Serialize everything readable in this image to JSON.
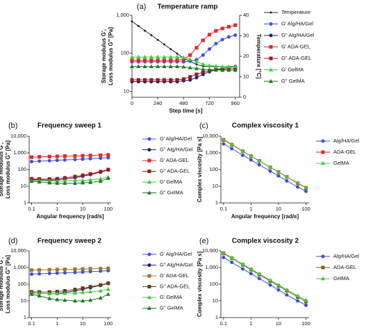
{
  "chart_data": [
    {
      "type": "line",
      "panel_label": "(a)",
      "title": "Temperature ramp",
      "xlabel": "Step time [s]",
      "ylabel": [
        "Storage modulus G',",
        "Loss modulus G'' [Pa]"
      ],
      "y2label": "Temperature [°C]",
      "ylog": true,
      "xlog": false,
      "xlim": [
        0,
        1000
      ],
      "xticks": [
        0,
        240,
        480,
        720,
        960
      ],
      "ylim": [
        7,
        1000
      ],
      "yticks": [
        10,
        100,
        {
          "value": 1000,
          "label": "1,000"
        }
      ],
      "y2lim": [
        0,
        40
      ],
      "y2ticks": [
        0,
        10,
        20,
        30,
        40
      ],
      "x": [
        0,
        60,
        120,
        180,
        240,
        300,
        360,
        420,
        480,
        540,
        600,
        660,
        720,
        780,
        840,
        900,
        960
      ],
      "series": [
        {
          "name": "Temperature",
          "color": "#222222",
          "marker": "dot",
          "axis": "y2",
          "values": [
            37,
            34.8,
            32.5,
            30.3,
            28,
            25.8,
            23.5,
            21.3,
            19,
            17.5,
            16,
            15.2,
            15,
            15,
            15,
            15,
            15
          ]
        },
        {
          "name": "G' Alg/HA/Gel",
          "color": "#3b4fd8",
          "marker": "circle",
          "values": [
            60,
            60,
            60,
            60,
            60,
            60,
            60,
            60,
            60,
            62,
            68,
            90,
            130,
            180,
            230,
            270,
            300
          ]
        },
        {
          "name": "G'' Alg/HA/Gel",
          "color": "#1c1c7a",
          "marker": "circle",
          "values": [
            18,
            18,
            18,
            18,
            18,
            18,
            18,
            18,
            19,
            20,
            23,
            28,
            33,
            37,
            40,
            43,
            45
          ]
        },
        {
          "name": "G' ADA-GEL",
          "color": "#e8262a",
          "marker": "square",
          "values": [
            65,
            65,
            65,
            65,
            65,
            65,
            65,
            65,
            70,
            90,
            140,
            220,
            310,
            390,
            450,
            500,
            550
          ]
        },
        {
          "name": "G'' ADA-GEL",
          "color": "#a01818",
          "marker": "square",
          "values": [
            20,
            20,
            20,
            20,
            20,
            20,
            20,
            20,
            21,
            24,
            28,
            32,
            35,
            37,
            38,
            39,
            40
          ]
        },
        {
          "name": "G' GelMA",
          "color": "#3ccf3c",
          "marker": "triangle",
          "values": [
            80,
            80,
            80,
            80,
            80,
            80,
            80,
            80,
            78,
            70,
            60,
            52,
            48,
            46,
            45,
            45,
            45
          ]
        },
        {
          "name": "G'' GelMA",
          "color": "#1e7a1e",
          "marker": "triangle",
          "values": [
            45,
            45,
            45,
            45,
            45,
            45,
            45,
            45,
            44,
            42,
            40,
            38,
            37,
            37,
            36,
            36,
            36
          ]
        }
      ]
    },
    {
      "type": "line",
      "panel_label": "(b)",
      "title": "Frequency sweep 1",
      "xlabel": "Angular frequency [rad/s]",
      "ylabel": [
        "Storage modulus G',",
        "Loss modulus G'' [Pa]"
      ],
      "ylog": true,
      "xlog": true,
      "xlim": [
        0.08,
        130
      ],
      "xticks": [
        0.1,
        1,
        10,
        100
      ],
      "ylim": [
        1,
        10000
      ],
      "yticks": [
        1,
        10,
        100,
        {
          "value": 1000,
          "label": "1,000"
        },
        {
          "value": 10000,
          "label": "10,000"
        }
      ],
      "x": [
        0.1,
        0.2,
        0.5,
        1,
        2,
        5,
        10,
        20,
        50,
        100
      ],
      "series": [
        {
          "name": "G' Alg/HA/Gel",
          "color": "#3b4fd8",
          "marker": "circle",
          "values": [
            300,
            320,
            340,
            360,
            380,
            400,
            420,
            450,
            480,
            520
          ]
        },
        {
          "name": "G'' Alg/HA/Gel",
          "color": "#1c1c7a",
          "marker": "circle",
          "values": [
            25,
            24,
            23,
            24,
            27,
            32,
            40,
            50,
            70,
            95
          ]
        },
        {
          "name": "G' ADA-GEL",
          "color": "#e8262a",
          "marker": "square",
          "values": [
            550,
            580,
            600,
            620,
            640,
            660,
            680,
            700,
            730,
            760
          ]
        },
        {
          "name": "G'' ADA-GEL",
          "color": "#a01818",
          "marker": "square",
          "values": [
            28,
            27,
            27,
            28,
            32,
            38,
            45,
            55,
            75,
            100
          ]
        },
        {
          "name": "G' GelMA",
          "color": "#3ccf3c",
          "marker": "triangle",
          "values": [
            22,
            22,
            21,
            20,
            21,
            22,
            22,
            24,
            28,
            35
          ]
        },
        {
          "name": "G'' GelMA",
          "color": "#1e7a1e",
          "marker": "triangle",
          "values": [
            20,
            18,
            16,
            15,
            15,
            15,
            16,
            17,
            20,
            30
          ]
        }
      ]
    },
    {
      "type": "line",
      "panel_label": "(c)",
      "title": "Complex viscosity 1",
      "xlabel": "Angular frequency [rad/s]",
      "ylabel": [
        "Complex viscosity [Pa s]"
      ],
      "ylog": true,
      "xlog": true,
      "xlim": [
        0.08,
        130
      ],
      "xticks": [
        0.1,
        1,
        10,
        100
      ],
      "ylim": [
        1,
        10000
      ],
      "yticks": [
        1,
        10,
        100,
        {
          "value": 1000,
          "label": "1,000"
        },
        {
          "value": 10000,
          "label": "10,000"
        }
      ],
      "x": [
        0.1,
        0.2,
        0.5,
        1,
        2,
        5,
        10,
        20,
        50,
        100
      ],
      "series": [
        {
          "name": "Alg/HA/Gel",
          "color": "#3b4fd8",
          "marker": "circle",
          "values": [
            3500,
            1800,
            730,
            380,
            195,
            80,
            42,
            21,
            9,
            5
          ]
        },
        {
          "name": "ADA-GEL",
          "color": "#e8262a",
          "marker": "square",
          "values": [
            6000,
            3100,
            1250,
            640,
            330,
            135,
            70,
            36,
            15,
            8
          ]
        },
        {
          "name": "GelMA",
          "color": "#3ccf3c",
          "marker": "triangle",
          "values": [
            6500,
            3300,
            1300,
            660,
            340,
            140,
            72,
            37,
            16,
            8.5
          ]
        }
      ]
    },
    {
      "type": "line",
      "panel_label": "(d)",
      "title": "Frequency sweep 2",
      "xlabel": "Angular frequency [rad/s]",
      "ylabel": [
        "Storage modulus G',",
        "Loss modulus G'' [Pa]"
      ],
      "ylog": true,
      "xlog": true,
      "xlim": [
        0.08,
        130
      ],
      "xticks": [
        0.1,
        1,
        10,
        100
      ],
      "ylim": [
        1,
        10000
      ],
      "yticks": [
        1,
        10,
        100,
        {
          "value": 1000,
          "label": "1,000"
        },
        {
          "value": 10000,
          "label": "10,000"
        }
      ],
      "x": [
        0.1,
        0.2,
        0.5,
        1,
        2,
        5,
        10,
        20,
        50,
        100
      ],
      "series": [
        {
          "name": "G' Alg/HA/Gel",
          "color": "#3b4fd8",
          "marker": "circle",
          "values": [
            400,
            420,
            440,
            460,
            480,
            510,
            540,
            570,
            610,
            650
          ]
        },
        {
          "name": "G'' Alg/HA/Gel",
          "color": "#1c1c7a",
          "marker": "circle",
          "values": [
            30,
            28,
            27,
            28,
            32,
            40,
            50,
            62,
            85,
            110
          ]
        },
        {
          "name": "G' ADA-GEL",
          "color": "#9a7a30",
          "marker": "square",
          "values": [
            700,
            720,
            740,
            760,
            780,
            800,
            820,
            840,
            870,
            900
          ]
        },
        {
          "name": "G'' ADA-GEL",
          "color": "#6b3a16",
          "marker": "square",
          "values": [
            35,
            34,
            34,
            36,
            40,
            48,
            58,
            70,
            90,
            115
          ]
        },
        {
          "name": "G' GelMA",
          "color": "#3ccf3c",
          "marker": "triangle",
          "values": [
            30,
            28,
            27,
            27,
            28,
            30,
            32,
            35,
            40,
            50
          ]
        },
        {
          "name": "G'' GelMA",
          "color": "#1e7a1e",
          "marker": "triangle",
          "values": [
            25,
            20,
            14,
            12,
            11,
            10,
            10,
            11,
            15,
            25
          ]
        }
      ]
    },
    {
      "type": "line",
      "panel_label": "(e)",
      "title": "Complex viscosity 2",
      "xlabel": "Angular frequency [rad/s]",
      "ylabel": [
        "Complex viscosity [Pa s]"
      ],
      "ylog": true,
      "xlog": true,
      "xlim": [
        0.08,
        130
      ],
      "xticks": [
        0.1,
        1,
        10,
        100
      ],
      "ylim": [
        1,
        10000
      ],
      "yticks": [
        1,
        10,
        100,
        {
          "value": 1000,
          "label": "1,000"
        },
        {
          "value": 10000,
          "label": "10,000"
        }
      ],
      "x": [
        0.1,
        0.2,
        0.5,
        1,
        2,
        5,
        10,
        20,
        50,
        100
      ],
      "series": [
        {
          "name": "Alg/HA/Gel",
          "color": "#3b4fd8",
          "marker": "circle",
          "values": [
            4000,
            2050,
            830,
            430,
            220,
            90,
            46,
            23,
            10,
            5.5
          ]
        },
        {
          "name": "ADA-GEL",
          "color": "#8a5a22",
          "marker": "square",
          "values": [
            7000,
            3600,
            1450,
            740,
            380,
            155,
            80,
            41,
            17,
            9
          ]
        },
        {
          "name": "GelMA",
          "color": "#3ccf3c",
          "marker": "triangle",
          "values": [
            7500,
            3900,
            1600,
            820,
            420,
            175,
            90,
            47,
            20,
            11
          ]
        }
      ]
    }
  ]
}
